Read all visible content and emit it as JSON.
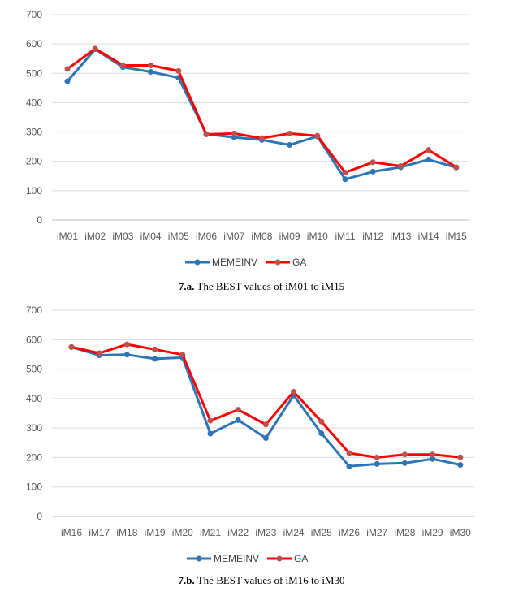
{
  "colors": {
    "memeinv": "#2E75B6",
    "ga": "#FF0000",
    "marker_ga": "#C0504D",
    "grid": "#D9D9D9",
    "axis": "#BFBFBF"
  },
  "chart_data": [
    {
      "type": "line",
      "categories": [
        "iM01",
        "iM02",
        "iM03",
        "iM04",
        "iM05",
        "iM06",
        "iM07",
        "iM08",
        "iM09",
        "iM10",
        "iM11",
        "iM12",
        "iM13",
        "iM14",
        "iM15"
      ],
      "series": [
        {
          "name": "MEMEINV",
          "values": [
            473,
            582,
            521,
            505,
            485,
            293,
            282,
            273,
            256,
            285,
            139,
            165,
            180,
            206,
            179
          ]
        },
        {
          "name": "GA",
          "values": [
            515,
            584,
            527,
            527,
            508,
            292,
            295,
            279,
            295,
            287,
            162,
            197,
            184,
            239,
            180
          ]
        }
      ],
      "y_ticks": [
        "0",
        "100",
        "200",
        "300",
        "400",
        "500",
        "600",
        "700"
      ],
      "ylim": [
        0,
        700
      ],
      "legend": "bottom",
      "caption_bold": "7.a.",
      "caption_text": " The BEST values of iM01 to iM15"
    },
    {
      "type": "line",
      "categories": [
        "iM16",
        "iM17",
        "iM18",
        "iM19",
        "iM20",
        "iM21",
        "iM22",
        "iM23",
        "iM24",
        "iM25",
        "iM26",
        "iM27",
        "iM28",
        "iM29",
        "iM30"
      ],
      "series": [
        {
          "name": "MEMEINV",
          "values": [
            575,
            547,
            549,
            535,
            539,
            281,
            327,
            266,
            411,
            282,
            170,
            178,
            181,
            195,
            175
          ]
        },
        {
          "name": "GA",
          "values": [
            575,
            554,
            584,
            567,
            549,
            325,
            362,
            312,
            423,
            322,
            215,
            200,
            210,
            210,
            201
          ]
        }
      ],
      "y_ticks": [
        "0",
        "100",
        "200",
        "300",
        "400",
        "500",
        "600",
        "700"
      ],
      "ylim": [
        0,
        700
      ],
      "legend": "bottom",
      "caption_bold": "7.b.",
      "caption_text": " The BEST values of iM16 to iM30"
    }
  ]
}
